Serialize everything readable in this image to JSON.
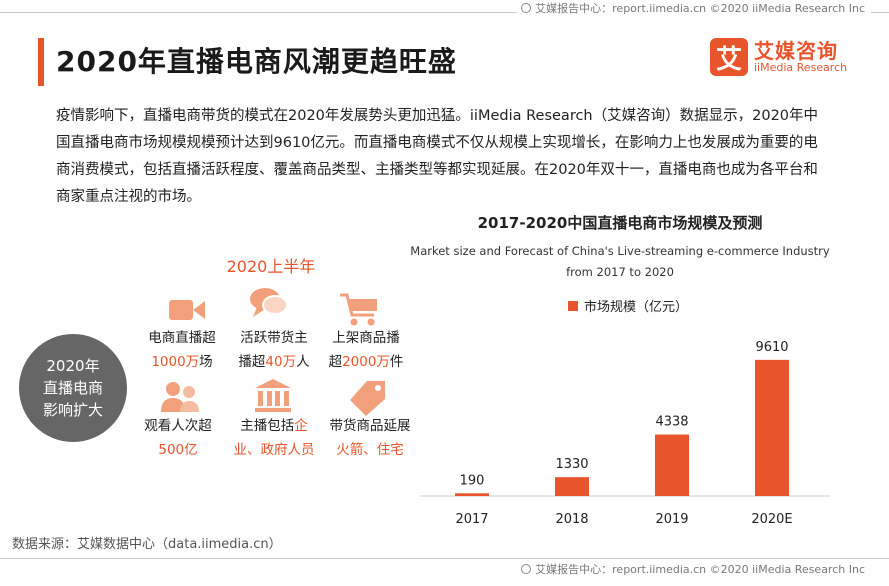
{
  "credit": {
    "text": "艾媒报告中心：report.iimedia.cn  ©2020  iiMedia Research  Inc"
  },
  "header": {
    "title": "2020年直播电商风潮更趋旺盛"
  },
  "logo": {
    "mark": "艾",
    "cn": "艾媒咨询",
    "en": "iiMedia Research"
  },
  "intro": {
    "text": "疫情影响下，直播电商带货的模式在2020年发展势头更加迅猛。iiMedia Research（艾媒咨询）数据显示，2020年中国直播电商市场规模规模预计达到9610亿元。而直播电商模式不仅从规模上实现增长，在影响力上也发展成为重要的电商消费模式，包括直播活跃程度、覆盖商品类型、主播类型等都实现延展。在2020年双十一，直播电商也成为各平台和商家重点注视的市场。"
  },
  "infographic": {
    "period": "2020上半年",
    "circle": {
      "line1": "2020年",
      "line2": "直播电商",
      "line3": "影响扩大"
    },
    "stats": [
      {
        "icon": "video-camera-icon",
        "l1a": "电商直播超",
        "l1b": "",
        "l2a": "",
        "l2b": "1000万",
        "l2c": "场"
      },
      {
        "icon": "chat-bubbles-icon",
        "l1a": "活跃带货主",
        "l1b": "",
        "l2a": "播超",
        "l2b": "40万",
        "l2c": "人"
      },
      {
        "icon": "shopping-cart-icon",
        "l1a": "上架商品播",
        "l1b": "",
        "l2a": "超",
        "l2b": "2000万",
        "l2c": "件"
      },
      {
        "icon": "audience-icon",
        "l1a": "观看人次超",
        "l1b": "",
        "l2a": "",
        "l2b": "500亿",
        "l2c": ""
      },
      {
        "icon": "institution-icon",
        "l1a": "主播包括",
        "l1b": "企",
        "l2a": "",
        "l2b": "业、政府人员",
        "l2c": ""
      },
      {
        "icon": "price-tag-icon",
        "l1a": "带货商品延展",
        "l1b": "",
        "l2a": "",
        "l2b": "火箭、住宅",
        "l2c": ""
      }
    ]
  },
  "chart_data": {
    "type": "bar",
    "title": "2017-2020中国直播电商市场规模及预测",
    "subtitle_line1": "Market size and Forecast of China's Live-streaming e-commerce Industry",
    "subtitle_line2": "from 2017 to 2020",
    "categories": [
      "2017",
      "2018",
      "2019",
      "2020E"
    ],
    "series": [
      {
        "name": "市场规模（亿元）",
        "values": [
          190,
          1330,
          4338,
          9610
        ]
      }
    ],
    "ylim": [
      0,
      10000
    ],
    "grid": false,
    "legend": "top-center",
    "color": "#e8542b"
  },
  "source": {
    "text": "数据来源：艾媒数据中心（data.iimedia.cn）"
  }
}
